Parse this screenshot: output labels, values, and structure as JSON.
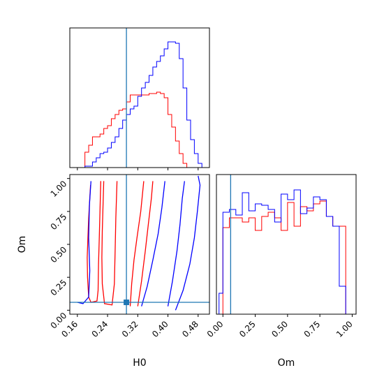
{
  "chart_data": {
    "type": "corner",
    "parameters": [
      "H0",
      "Om"
    ],
    "truth": {
      "H0": 0.29,
      "Om": 0.06
    },
    "colors": {
      "red": "#ff0000",
      "blue": "#0000ff",
      "truth": "#1f77b4"
    },
    "panels": [
      {
        "id": "hist-h0",
        "type": "histogram",
        "xlim": [
          0.14,
          0.51
        ],
        "xticks": [
          0.16,
          0.24,
          0.32,
          0.4,
          0.48
        ],
        "bin_edges": [
          0.14,
          0.15,
          0.16,
          0.17,
          0.18,
          0.19,
          0.2,
          0.21,
          0.22,
          0.23,
          0.24,
          0.25,
          0.26,
          0.27,
          0.28,
          0.29,
          0.3,
          0.31,
          0.32,
          0.33,
          0.34,
          0.35,
          0.36,
          0.37,
          0.38,
          0.39,
          0.4,
          0.41,
          0.42,
          0.43,
          0.44,
          0.45,
          0.46,
          0.47,
          0.48,
          0.49,
          0.5,
          0.51
        ],
        "ylim": [
          0,
          1.0
        ],
        "series": [
          {
            "color": "red",
            "values": [
              0.0,
              0.0,
              0.0,
              0.0,
              0.11,
              0.16,
              0.22,
              0.22,
              0.24,
              0.28,
              0.3,
              0.35,
              0.38,
              0.41,
              0.42,
              0.47,
              0.52,
              0.52,
              0.52,
              0.52,
              0.52,
              0.53,
              0.53,
              0.54,
              0.53,
              0.5,
              0.38,
              0.29,
              0.19,
              0.1,
              0.03,
              0.0,
              0.0,
              0.0,
              0.0,
              0.0,
              0.0
            ]
          },
          {
            "color": "blue",
            "values": [
              0.0,
              0.0,
              0.0,
              0.0,
              0.01,
              0.01,
              0.04,
              0.07,
              0.1,
              0.11,
              0.14,
              0.18,
              0.22,
              0.28,
              0.34,
              0.38,
              0.42,
              0.44,
              0.51,
              0.57,
              0.61,
              0.66,
              0.72,
              0.76,
              0.8,
              0.85,
              0.9,
              0.9,
              0.89,
              0.78,
              0.57,
              0.34,
              0.2,
              0.1,
              0.03,
              0.0,
              0.0
            ]
          }
        ]
      },
      {
        "id": "contour-h0-om",
        "type": "contour",
        "xlabel": "H0",
        "ylabel": "Om",
        "xlim": [
          0.14,
          0.51
        ],
        "ylim": [
          -0.03,
          1.03
        ],
        "xticks": [
          0.16,
          0.24,
          0.32,
          0.4,
          0.48
        ],
        "yticks": [
          0.0,
          0.25,
          0.5,
          0.75,
          1.0
        ],
        "contours": [
          {
            "color": "red",
            "level": "outer",
            "points": [
              [
                0.195,
                0.95
              ],
              [
                0.193,
                0.85
              ],
              [
                0.19,
                0.7
              ],
              [
                0.188,
                0.55
              ],
              [
                0.186,
                0.4
              ],
              [
                0.187,
                0.25
              ],
              [
                0.19,
                0.1
              ],
              [
                0.196,
                0.06
              ],
              [
                0.212,
                0.07
              ],
              [
                0.215,
                0.15
              ],
              [
                0.216,
                0.35
              ],
              [
                0.218,
                0.55
              ],
              [
                0.22,
                0.75
              ],
              [
                0.222,
                0.98
              ]
            ]
          },
          {
            "color": "red",
            "level": "inner",
            "points": [
              [
                0.23,
                0.98
              ],
              [
                0.228,
                0.8
              ],
              [
                0.226,
                0.6
              ],
              [
                0.225,
                0.4
              ],
              [
                0.226,
                0.2
              ],
              [
                0.232,
                0.05
              ],
              [
                0.252,
                0.04
              ],
              [
                0.258,
                0.2
              ],
              [
                0.26,
                0.45
              ],
              [
                0.262,
                0.7
              ],
              [
                0.265,
                0.98
              ]
            ]
          },
          {
            "color": "red",
            "level": "inner-right",
            "points": [
              [
                0.3,
                0.03
              ],
              [
                0.304,
                0.2
              ],
              [
                0.31,
                0.38
              ],
              [
                0.318,
                0.55
              ],
              [
                0.328,
                0.75
              ],
              [
                0.336,
                0.98
              ]
            ]
          },
          {
            "color": "red",
            "level": "outer-right",
            "points": [
              [
                0.32,
                0.03
              ],
              [
                0.33,
                0.22
              ],
              [
                0.34,
                0.45
              ],
              [
                0.348,
                0.65
              ],
              [
                0.356,
                0.85
              ],
              [
                0.36,
                0.98
              ]
            ]
          },
          {
            "color": "blue",
            "level": "outer",
            "points": [
              [
                0.16,
                0.06
              ],
              [
                0.175,
                0.05
              ],
              [
                0.19,
                0.1
              ],
              [
                0.193,
                0.3
              ],
              [
                0.19,
                0.55
              ],
              [
                0.192,
                0.8
              ],
              [
                0.196,
                0.98
              ]
            ]
          },
          {
            "color": "blue",
            "level": "inner-right",
            "points": [
              [
                0.33,
                0.03
              ],
              [
                0.345,
                0.18
              ],
              [
                0.36,
                0.38
              ],
              [
                0.374,
                0.58
              ],
              [
                0.384,
                0.78
              ],
              [
                0.392,
                0.98
              ]
            ]
          },
          {
            "color": "blue",
            "level": "mid-right",
            "points": [
              [
                0.4,
                0.03
              ],
              [
                0.412,
                0.22
              ],
              [
                0.424,
                0.45
              ],
              [
                0.432,
                0.65
              ],
              [
                0.438,
                0.85
              ],
              [
                0.444,
                0.98
              ]
            ]
          },
          {
            "color": "blue",
            "level": "outer-right",
            "points": [
              [
                0.42,
                0.0
              ],
              [
                0.44,
                0.15
              ],
              [
                0.458,
                0.35
              ],
              [
                0.47,
                0.55
              ],
              [
                0.478,
                0.75
              ],
              [
                0.485,
                0.95
              ],
              [
                0.48,
                1.02
              ]
            ]
          }
        ]
      },
      {
        "id": "hist-om",
        "type": "histogram",
        "xlabel": "Om",
        "xlim": [
          -0.05,
          1.03
        ],
        "xticks": [
          0.0,
          0.25,
          0.5,
          0.75,
          1.0
        ],
        "bin_edges": [
          -0.03,
          0.0,
          0.05,
          0.1,
          0.15,
          0.2,
          0.25,
          0.3,
          0.35,
          0.4,
          0.45,
          0.5,
          0.55,
          0.6,
          0.65,
          0.7,
          0.75,
          0.8,
          0.85,
          0.9,
          0.95,
          1.0
        ],
        "ylim": [
          0,
          1.0
        ],
        "series": [
          {
            "color": "red",
            "values": [
              0.0,
              0.62,
              0.69,
              0.69,
              0.66,
              0.69,
              0.6,
              0.7,
              0.73,
              0.69,
              0.6,
              0.8,
              0.63,
              0.77,
              0.74,
              0.79,
              0.81,
              0.7,
              0.63,
              0.63,
              0.0
            ]
          },
          {
            "color": "blue",
            "values": [
              0.15,
              0.73,
              0.75,
              0.71,
              0.87,
              0.74,
              0.79,
              0.78,
              0.75,
              0.66,
              0.86,
              0.82,
              0.89,
              0.72,
              0.76,
              0.84,
              0.82,
              0.7,
              0.63,
              0.2,
              0.0
            ]
          }
        ]
      }
    ]
  }
}
